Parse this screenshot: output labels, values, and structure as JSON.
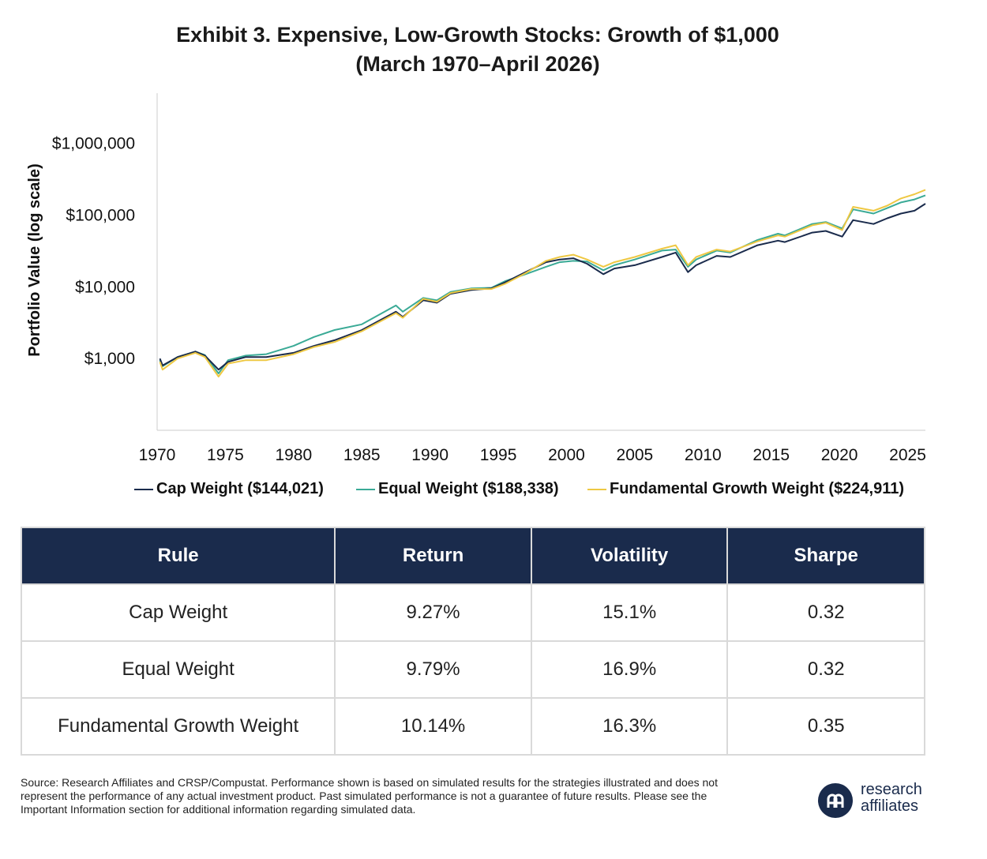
{
  "title_line1": "Exhibit 3. Expensive, Low-Growth Stocks: Growth of $1,000",
  "title_line2": "(March 1970–April 2026)",
  "colors": {
    "cap": "#1a2b4c",
    "equal": "#3aaa96",
    "fundamental": "#eec843",
    "header": "#1a2b4c"
  },
  "chart_data": {
    "type": "line",
    "ylabel": "Portfolio Value (log scale)",
    "xlabel": "",
    "yscale": "log",
    "ylim": [
      100,
      5000000
    ],
    "xlim": [
      1970,
      2026.3
    ],
    "yticks": [
      1000,
      10000,
      100000,
      1000000
    ],
    "ytick_labels": [
      "$1,000",
      "$10,000",
      "$100,000",
      "$1,000,000"
    ],
    "xticks": [
      "1970",
      "1975",
      "1980",
      "1985",
      "1990",
      "1995",
      "2000",
      "2005",
      "2010",
      "2015",
      "2020",
      "2025"
    ],
    "grid": false,
    "legend_position": "bottom",
    "series": [
      {
        "name": "Cap Weight ($144,021)",
        "color": "#1a2b4c",
        "points": [
          [
            1970.2,
            1000
          ],
          [
            1970.4,
            800
          ],
          [
            1971.5,
            1050
          ],
          [
            1972.8,
            1250
          ],
          [
            1973.5,
            1100
          ],
          [
            1974.5,
            700
          ],
          [
            1975.2,
            900
          ],
          [
            1976.5,
            1050
          ],
          [
            1978,
            1050
          ],
          [
            1980,
            1200
          ],
          [
            1981.5,
            1500
          ],
          [
            1983,
            1800
          ],
          [
            1985,
            2500
          ],
          [
            1987.5,
            4500
          ],
          [
            1988,
            3800
          ],
          [
            1989.5,
            6500
          ],
          [
            1990.5,
            6000
          ],
          [
            1991.5,
            8000
          ],
          [
            1993,
            9000
          ],
          [
            1994.5,
            9500
          ],
          [
            1995.5,
            11500
          ],
          [
            1997,
            16000
          ],
          [
            1998.5,
            22000
          ],
          [
            1999.5,
            24000
          ],
          [
            2000.5,
            25000
          ],
          [
            2001.5,
            21000
          ],
          [
            2002.7,
            15000
          ],
          [
            2003.5,
            18000
          ],
          [
            2005,
            20000
          ],
          [
            2007,
            26000
          ],
          [
            2008,
            30000
          ],
          [
            2008.9,
            16000
          ],
          [
            2009.5,
            20000
          ],
          [
            2011,
            27000
          ],
          [
            2012,
            26000
          ],
          [
            2014,
            38000
          ],
          [
            2015.5,
            44000
          ],
          [
            2016,
            42000
          ],
          [
            2018,
            57000
          ],
          [
            2019,
            60000
          ],
          [
            2020.2,
            50000
          ],
          [
            2021,
            85000
          ],
          [
            2022.5,
            75000
          ],
          [
            2023.5,
            90000
          ],
          [
            2024.5,
            105000
          ],
          [
            2025.5,
            115000
          ],
          [
            2026.3,
            144021
          ]
        ]
      },
      {
        "name": "Equal Weight ($188,338)",
        "color": "#3aaa96",
        "points": [
          [
            1970.2,
            950
          ],
          [
            1970.4,
            780
          ],
          [
            1971.5,
            1050
          ],
          [
            1972.8,
            1250
          ],
          [
            1973.5,
            1120
          ],
          [
            1974.5,
            620
          ],
          [
            1975.2,
            950
          ],
          [
            1976.5,
            1100
          ],
          [
            1978,
            1150
          ],
          [
            1980,
            1500
          ],
          [
            1981.5,
            2000
          ],
          [
            1983,
            2500
          ],
          [
            1985,
            3000
          ],
          [
            1987.5,
            5500
          ],
          [
            1988,
            4500
          ],
          [
            1989.5,
            7000
          ],
          [
            1990.5,
            6500
          ],
          [
            1991.5,
            8500
          ],
          [
            1993,
            9500
          ],
          [
            1994.5,
            9700
          ],
          [
            1995.5,
            12000
          ],
          [
            1997,
            15000
          ],
          [
            1998.5,
            19000
          ],
          [
            1999.5,
            22000
          ],
          [
            2000.5,
            23000
          ],
          [
            2001.5,
            22500
          ],
          [
            2002.7,
            17000
          ],
          [
            2003.5,
            20000
          ],
          [
            2005,
            24000
          ],
          [
            2007,
            32000
          ],
          [
            2008,
            33000
          ],
          [
            2008.9,
            19000
          ],
          [
            2009.5,
            24000
          ],
          [
            2011,
            32000
          ],
          [
            2012,
            30000
          ],
          [
            2014,
            45000
          ],
          [
            2015.5,
            55000
          ],
          [
            2016,
            52000
          ],
          [
            2018,
            75000
          ],
          [
            2019,
            80000
          ],
          [
            2020.2,
            65000
          ],
          [
            2021,
            120000
          ],
          [
            2022.5,
            105000
          ],
          [
            2023.5,
            125000
          ],
          [
            2024.5,
            150000
          ],
          [
            2025.5,
            165000
          ],
          [
            2026.3,
            188338
          ]
        ]
      },
      {
        "name": "Fundamental Growth Weight ($224,911)",
        "color": "#eec843",
        "points": [
          [
            1970.2,
            900
          ],
          [
            1970.4,
            700
          ],
          [
            1971.5,
            1000
          ],
          [
            1972.8,
            1200
          ],
          [
            1973.5,
            1050
          ],
          [
            1974.5,
            560
          ],
          [
            1975.2,
            850
          ],
          [
            1976.5,
            950
          ],
          [
            1978,
            950
          ],
          [
            1980,
            1150
          ],
          [
            1981.5,
            1450
          ],
          [
            1983,
            1700
          ],
          [
            1985,
            2400
          ],
          [
            1987.5,
            4300
          ],
          [
            1988,
            3700
          ],
          [
            1989.5,
            6800
          ],
          [
            1990.5,
            6200
          ],
          [
            1991.5,
            8200
          ],
          [
            1993,
            9300
          ],
          [
            1994.5,
            9300
          ],
          [
            1995.5,
            11000
          ],
          [
            1997,
            15500
          ],
          [
            1998.5,
            23000
          ],
          [
            1999.5,
            26000
          ],
          [
            2000.5,
            28000
          ],
          [
            2001.5,
            24000
          ],
          [
            2002.7,
            19000
          ],
          [
            2003.5,
            22000
          ],
          [
            2005,
            26000
          ],
          [
            2007,
            34000
          ],
          [
            2008,
            38000
          ],
          [
            2008.9,
            20000
          ],
          [
            2009.5,
            26000
          ],
          [
            2011,
            33000
          ],
          [
            2012,
            31000
          ],
          [
            2014,
            43000
          ],
          [
            2015.5,
            52000
          ],
          [
            2016,
            50000
          ],
          [
            2018,
            72000
          ],
          [
            2019,
            78000
          ],
          [
            2020.2,
            62000
          ],
          [
            2021,
            130000
          ],
          [
            2022.5,
            115000
          ],
          [
            2023.5,
            135000
          ],
          [
            2024.5,
            170000
          ],
          [
            2025.5,
            195000
          ],
          [
            2026.3,
            224911
          ]
        ]
      }
    ]
  },
  "legend": [
    {
      "label": "Cap Weight ($144,021)",
      "color": "#1a2b4c"
    },
    {
      "label": "Equal Weight ($188,338)",
      "color": "#3aaa96"
    },
    {
      "label": "Fundamental Growth Weight ($224,911)",
      "color": "#eec843"
    }
  ],
  "table": {
    "headers": [
      "Rule",
      "Return",
      "Volatility",
      "Sharpe"
    ],
    "rows": [
      [
        "Cap Weight",
        "9.27%",
        "15.1%",
        "0.32"
      ],
      [
        "Equal Weight",
        "9.79%",
        "16.9%",
        "0.32"
      ],
      [
        "Fundamental Growth Weight",
        "10.14%",
        "16.3%",
        "0.35"
      ]
    ]
  },
  "source_text": "Source: Research Affiliates and CRSP/Compustat. Performance shown is based on simulated results for the strategies illustrated and does not represent the performance of any actual investment product. Past simulated performance is not a guarantee of future results. Please see the Important Information section for additional information regarding simulated data.",
  "logo": {
    "line1": "research",
    "line2": "affiliates",
    "mark": "ʀᴀ"
  }
}
